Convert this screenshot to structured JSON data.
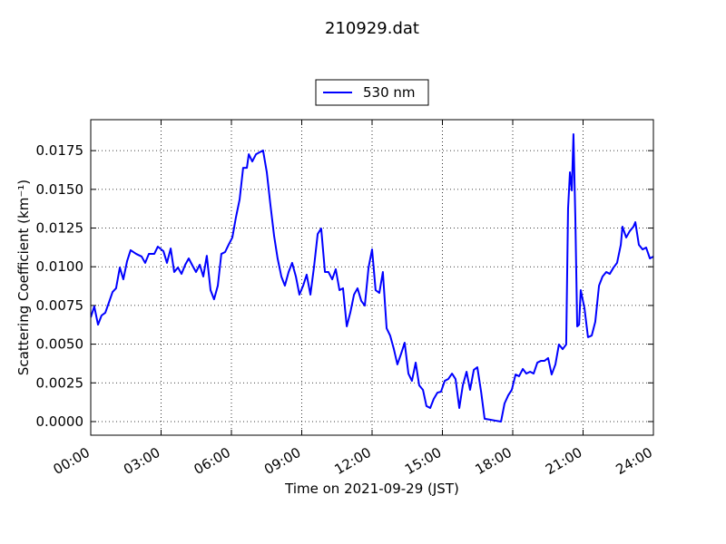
{
  "chart_data": {
    "type": "line",
    "title": "210929.dat",
    "xlabel": "Time on 2021-09-29 (JST)",
    "ylabel": "Scattering Coefficient (km⁻¹)",
    "x": [
      0.0,
      0.15,
      0.31,
      0.46,
      0.62,
      0.77,
      0.93,
      1.08,
      1.24,
      1.39,
      1.55,
      1.7,
      1.94,
      2.17,
      2.32,
      2.48,
      2.71,
      2.86,
      3.1,
      3.25,
      3.41,
      3.56,
      3.72,
      3.87,
      4.03,
      4.18,
      4.34,
      4.49,
      4.65,
      4.8,
      4.95,
      5.11,
      5.26,
      5.42,
      5.57,
      5.73,
      5.88,
      6.04,
      6.19,
      6.35,
      6.5,
      6.66,
      6.74,
      6.89,
      7.05,
      7.2,
      7.35,
      7.51,
      7.66,
      7.82,
      7.97,
      8.13,
      8.28,
      8.44,
      8.59,
      8.75,
      8.9,
      9.06,
      9.21,
      9.37,
      9.52,
      9.68,
      9.83,
      9.99,
      10.14,
      10.3,
      10.45,
      10.61,
      10.76,
      10.92,
      11.07,
      11.23,
      11.38,
      11.54,
      11.69,
      11.85,
      12.0,
      12.15,
      12.31,
      12.46,
      12.62,
      12.77,
      12.93,
      13.08,
      13.24,
      13.39,
      13.55,
      13.7,
      13.86,
      14.01,
      14.17,
      14.32,
      14.48,
      14.63,
      14.79,
      14.94,
      15.1,
      15.25,
      15.41,
      15.56,
      15.72,
      15.87,
      16.03,
      16.18,
      16.34,
      16.49,
      16.65,
      16.8,
      17.03,
      17.26,
      17.5,
      17.65,
      17.81,
      17.96,
      18.12,
      18.27,
      18.43,
      18.58,
      18.74,
      18.89,
      19.05,
      19.2,
      19.35,
      19.51,
      19.66,
      19.82,
      19.97,
      20.13,
      20.28,
      20.36,
      20.44,
      20.52,
      20.59,
      20.67,
      20.75,
      20.83,
      20.9,
      21.06,
      21.21,
      21.37,
      21.52,
      21.68,
      21.83,
      21.99,
      22.14,
      22.3,
      22.45,
      22.61,
      22.68,
      22.84,
      22.99,
      23.15,
      23.23,
      23.38,
      23.54,
      23.69,
      23.85,
      24.0
    ],
    "series": [
      {
        "name": "530 nm",
        "color": "#0000ff",
        "values": [
          0.00673,
          0.00744,
          0.00626,
          0.00685,
          0.00703,
          0.00767,
          0.00837,
          0.00861,
          0.00995,
          0.00919,
          0.01036,
          0.01107,
          0.01083,
          0.01066,
          0.01025,
          0.01083,
          0.01083,
          0.0113,
          0.01101,
          0.01025,
          0.01118,
          0.00966,
          0.00995,
          0.00954,
          0.01013,
          0.01054,
          0.01007,
          0.00966,
          0.01013,
          0.00937,
          0.01071,
          0.00849,
          0.0079,
          0.00878,
          0.01083,
          0.01095,
          0.01142,
          0.01189,
          0.01317,
          0.01434,
          0.01639,
          0.01639,
          0.01727,
          0.0168,
          0.01727,
          0.01739,
          0.01751,
          0.0161,
          0.01405,
          0.012,
          0.01054,
          0.00937,
          0.00878,
          0.00966,
          0.01025,
          0.00937,
          0.0082,
          0.00878,
          0.00949,
          0.0082,
          0.00995,
          0.01212,
          0.01247,
          0.00966,
          0.00966,
          0.00919,
          0.00984,
          0.00849,
          0.00861,
          0.00615,
          0.00703,
          0.0082,
          0.00861,
          0.00779,
          0.00749,
          0.00995,
          0.01112,
          0.00849,
          0.00831,
          0.00966,
          0.00603,
          0.00556,
          0.00468,
          0.00369,
          0.00439,
          0.00509,
          0.0031,
          0.00263,
          0.00381,
          0.00234,
          0.00205,
          0.001,
          0.00088,
          0.00146,
          0.00187,
          0.00193,
          0.00263,
          0.00275,
          0.0031,
          0.00275,
          0.00088,
          0.00234,
          0.00322,
          0.00205,
          0.00334,
          0.00351,
          0.00193,
          0.00018,
          0.00012,
          6e-05,
          0,
          0.00117,
          0.0017,
          0.00205,
          0.00304,
          0.00293,
          0.0034,
          0.0031,
          0.00322,
          0.0031,
          0.00381,
          0.00392,
          0.00392,
          0.0041,
          0.00304,
          0.00369,
          0.00498,
          0.00468,
          0.00498,
          0.01376,
          0.0161,
          0.01493,
          0.01856,
          0.01317,
          0.00615,
          0.00626,
          0.00849,
          0.00732,
          0.00545,
          0.00556,
          0.00644,
          0.00878,
          0.00937,
          0.00966,
          0.00954,
          0.00995,
          0.01025,
          0.01142,
          0.01259,
          0.01189,
          0.0123,
          0.01259,
          0.01288,
          0.01142,
          0.01112,
          0.01124,
          0.01054,
          0.01066
        ]
      }
    ],
    "xlim": [
      0,
      24
    ],
    "xticks": [
      {
        "value": 0,
        "label": "00:00"
      },
      {
        "value": 3,
        "label": "03:00"
      },
      {
        "value": 6,
        "label": "06:00"
      },
      {
        "value": 9,
        "label": "09:00"
      },
      {
        "value": 12,
        "label": "12:00"
      },
      {
        "value": 15,
        "label": "15:00"
      },
      {
        "value": 18,
        "label": "18:00"
      },
      {
        "value": 21,
        "label": "21:00"
      },
      {
        "value": 24,
        "label": "24:00"
      }
    ],
    "ylim": [
      -0.00088,
      0.0195
    ],
    "yticks": [
      {
        "value": 0,
        "label": "0.0000"
      },
      {
        "value": 0.0025,
        "label": "0.0025"
      },
      {
        "value": 0.005,
        "label": "0.0050"
      },
      {
        "value": 0.0075,
        "label": "0.0075"
      },
      {
        "value": 0.01,
        "label": "0.0100"
      },
      {
        "value": 0.0125,
        "label": "0.0125"
      },
      {
        "value": 0.015,
        "label": "0.0150"
      },
      {
        "value": 0.0175,
        "label": "0.0175"
      }
    ],
    "grid": true,
    "legend": "upper center"
  }
}
